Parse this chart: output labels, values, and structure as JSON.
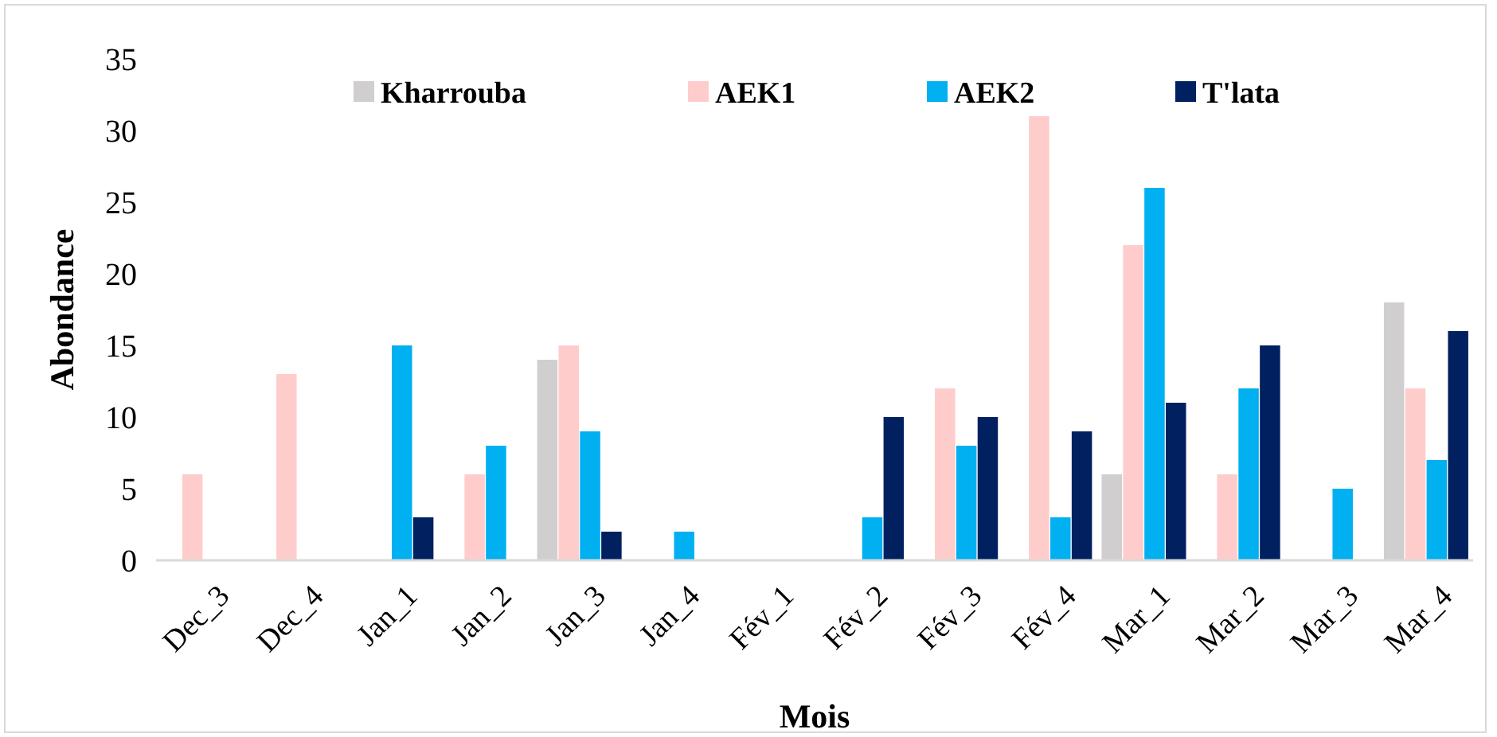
{
  "chart_data": {
    "type": "bar",
    "xlabel": "Mois",
    "ylabel": "Abondance",
    "categories": [
      "Dec_3",
      "Dec_4",
      "Jan_1",
      "Jan_2",
      "Jan_3",
      "Jan_4",
      "Fév_1",
      "Fév_2",
      "Fév_3",
      "Fév_4",
      "Mar_1",
      "Mar_2",
      "Mar_3",
      "Mar_4"
    ],
    "series": [
      {
        "name": "Kharrouba",
        "color": "#d0cece",
        "values": [
          0,
          0,
          0,
          0,
          14,
          0,
          0,
          0,
          0,
          0,
          6,
          0,
          0,
          18
        ]
      },
      {
        "name": "AEK1",
        "color": "#ffcccc",
        "values": [
          6,
          13,
          0,
          6,
          15,
          0,
          0,
          0,
          12,
          31,
          22,
          6,
          0,
          12
        ]
      },
      {
        "name": "AEK2",
        "color": "#00b0f0",
        "values": [
          0,
          0,
          15,
          8,
          9,
          2,
          0,
          3,
          8,
          3,
          26,
          12,
          5,
          7
        ]
      },
      {
        "name": "T'lata",
        "color": "#002060",
        "values": [
          0,
          0,
          3,
          0,
          2,
          0,
          0,
          10,
          10,
          9,
          11,
          15,
          0,
          16
        ]
      }
    ],
    "ylim": [
      0,
      35
    ],
    "yticks": [
      0,
      5,
      10,
      15,
      20,
      25,
      30,
      35
    ],
    "grid": false,
    "legend": "top"
  }
}
